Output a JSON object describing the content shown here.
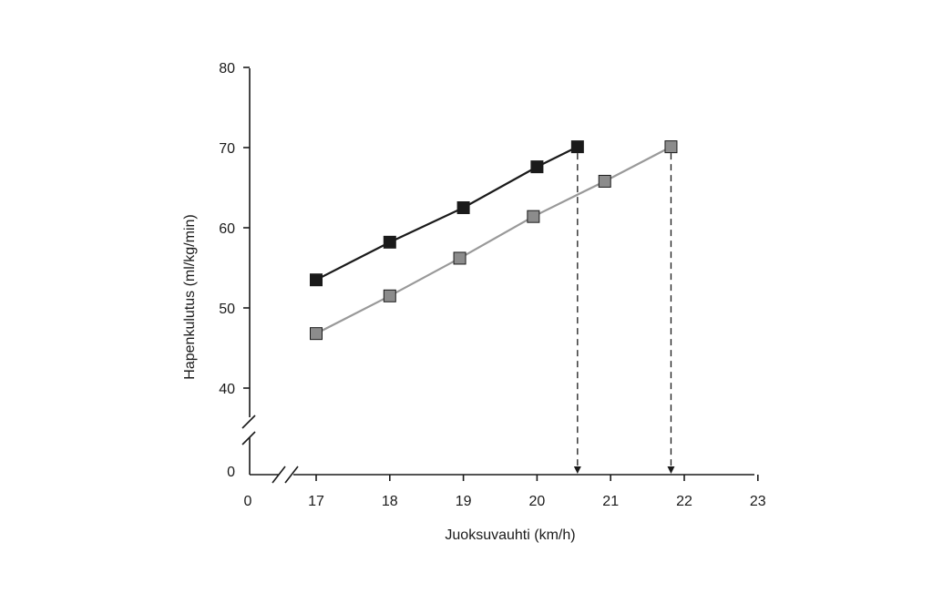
{
  "chart_data": {
    "type": "line",
    "title": "",
    "xlabel": "Juoksuvauhti (km/h)",
    "ylabel": "Hapenkulutus (ml/kg/min)",
    "xlim": [
      17,
      23
    ],
    "ylim": [
      40,
      80
    ],
    "axis_break": {
      "x_origin_label": "0",
      "y_origin_label": "0"
    },
    "x_ticks": [
      17,
      18,
      19,
      20,
      21,
      22,
      23
    ],
    "y_ticks": [
      40,
      50,
      60,
      70,
      80
    ],
    "grid": false,
    "legend": "none",
    "series": [
      {
        "name": "series-1",
        "color": "#1a1a1a",
        "marker_fill": "#1a1a1a",
        "x": [
          17,
          18,
          19,
          20,
          20.55
        ],
        "y": [
          53.5,
          58.2,
          62.5,
          67.6,
          70.1
        ]
      },
      {
        "name": "series-2",
        "color": "#999999",
        "marker_fill": "#8c8c8c",
        "x": [
          17,
          18,
          18.95,
          19.95,
          20.92,
          21.82
        ],
        "y": [
          46.8,
          51.5,
          56.2,
          61.4,
          65.8,
          70.1
        ]
      }
    ],
    "dashed_arrows": [
      {
        "x": 20.55,
        "from_y": 70.1
      },
      {
        "x": 21.82,
        "from_y": 70.1
      }
    ]
  }
}
